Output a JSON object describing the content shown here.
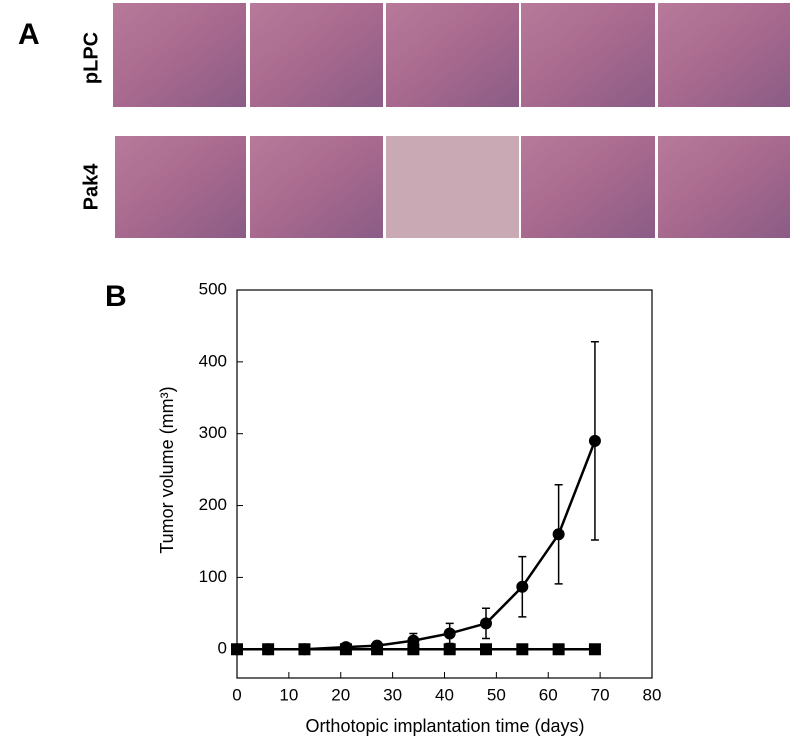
{
  "panel_a": {
    "label": "A",
    "rows": [
      "pLPC",
      "Pak4"
    ]
  },
  "panel_b": {
    "label": "B"
  },
  "chart_data": {
    "type": "scatter",
    "xlabel": "Orthotopic implantation time (days)",
    "ylabel": "Tumor volume (mm³)",
    "xlim": [
      0,
      80
    ],
    "xticks": [
      0,
      10,
      20,
      30,
      40,
      50,
      60,
      70,
      80
    ],
    "ylim": [
      -40,
      500
    ],
    "yticks": [
      0,
      100,
      200,
      300,
      400,
      500
    ],
    "series": [
      {
        "color": "#000000",
        "marker": "square",
        "x": [
          0,
          6,
          13,
          21,
          27,
          34,
          41,
          48,
          55,
          62,
          69
        ],
        "values": [
          0,
          0,
          0,
          0,
          0,
          0,
          0,
          0,
          0,
          0,
          0
        ]
      },
      {
        "color": "#000000",
        "marker": "circle",
        "x": [
          0,
          6,
          13,
          21,
          27,
          34,
          41,
          48,
          55,
          62,
          69
        ],
        "values": [
          0,
          0,
          0,
          3,
          5,
          12,
          22,
          36,
          87,
          160,
          290
        ],
        "errors": [
          0,
          0,
          0,
          2,
          3,
          10,
          14,
          21,
          42,
          69,
          138
        ]
      }
    ]
  }
}
